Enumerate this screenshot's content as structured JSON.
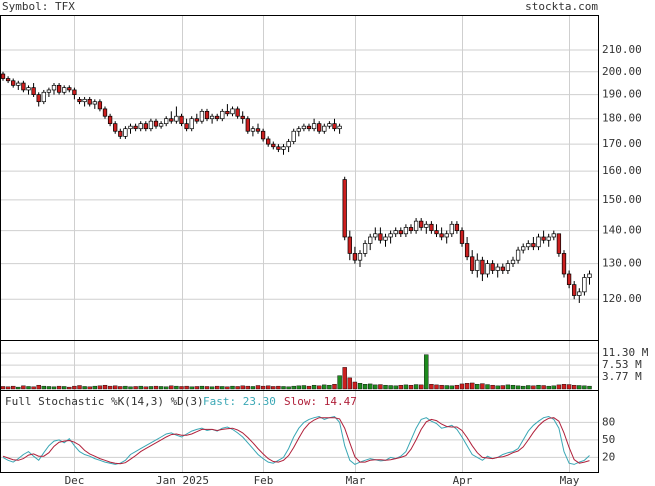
{
  "chart_data": [
    {
      "type": "candlestick",
      "title": "Symbol: TFX",
      "source": "stockta.com",
      "log_scale": true,
      "grid": true,
      "up_color": "#ffffff",
      "down_color": "#cc1f1f",
      "categories": [
        null,
        null,
        null,
        null,
        null,
        null,
        null,
        null,
        null,
        null,
        null,
        null,
        null,
        null,
        "Dec",
        null,
        null,
        null,
        null,
        null,
        null,
        null,
        null,
        null,
        null,
        null,
        null,
        null,
        null,
        null,
        null,
        null,
        null,
        null,
        null,
        "Jan 2025",
        null,
        null,
        null,
        null,
        null,
        null,
        null,
        null,
        null,
        null,
        null,
        null,
        null,
        null,
        null,
        "Feb",
        null,
        null,
        null,
        null,
        null,
        null,
        null,
        null,
        null,
        null,
        null,
        null,
        null,
        null,
        null,
        null,
        null,
        "Mar",
        null,
        null,
        null,
        null,
        null,
        null,
        null,
        null,
        null,
        null,
        null,
        null,
        null,
        null,
        null,
        null,
        null,
        null,
        null,
        null,
        "Apr",
        null,
        null,
        null,
        null,
        null,
        null,
        null,
        null,
        null,
        null,
        null,
        null,
        null,
        null,
        null,
        null,
        null,
        null,
        null,
        null,
        "May",
        null,
        null,
        null,
        null
      ],
      "open": [
        199,
        197,
        196,
        194,
        195,
        192,
        193,
        190,
        187,
        191,
        192,
        194,
        191,
        193,
        192,
        188,
        187,
        188,
        186,
        187,
        184,
        181,
        178,
        175,
        173,
        176,
        177,
        176,
        178,
        176,
        179,
        177,
        178,
        180,
        179,
        181,
        178,
        176,
        180,
        179,
        183,
        180,
        181,
        180,
        183,
        182,
        184,
        181,
        180,
        175,
        176,
        175,
        172,
        170,
        169,
        168,
        169,
        171,
        175,
        176,
        177,
        176,
        178,
        175,
        177,
        178,
        176,
        157,
        138,
        133,
        131,
        133,
        136,
        138,
        139,
        137,
        138,
        139,
        140,
        139,
        141,
        140,
        143,
        141,
        142,
        140,
        139,
        138,
        139,
        142,
        140,
        136,
        132,
        128,
        131,
        127,
        130,
        128,
        129,
        128,
        130,
        131,
        134,
        135,
        136,
        135,
        138,
        137,
        138,
        139,
        133,
        127,
        124,
        121,
        122,
        126
      ],
      "high": [
        200,
        198,
        197,
        196,
        196,
        194,
        195,
        191,
        192,
        193,
        195,
        195,
        194,
        194,
        193,
        189,
        189,
        189,
        188,
        188,
        185,
        182,
        179,
        176,
        177,
        178,
        178,
        179,
        179,
        180,
        180,
        179,
        181,
        183,
        185,
        182,
        180,
        181,
        182,
        184,
        184,
        182,
        182,
        184,
        186,
        185,
        185,
        183,
        181,
        177,
        178,
        176,
        173,
        171,
        170,
        170,
        172,
        176,
        177,
        178,
        178,
        180,
        179,
        178,
        179,
        180,
        178,
        158,
        140,
        135,
        134,
        137,
        139,
        141,
        141,
        139,
        140,
        141,
        141,
        142,
        142,
        144,
        144,
        143,
        143,
        142,
        141,
        140,
        143,
        143,
        141,
        138,
        134,
        133,
        132,
        131,
        131,
        130,
        130,
        131,
        132,
        135,
        136,
        137,
        138,
        139,
        140,
        139,
        140,
        139,
        134,
        128,
        125,
        123,
        127,
        128
      ],
      "low": [
        196,
        195,
        193,
        192,
        191,
        190,
        189,
        185,
        186,
        189,
        190,
        190,
        190,
        191,
        188,
        186,
        185,
        185,
        184,
        183,
        180,
        177,
        174,
        172,
        172,
        174,
        175,
        175,
        175,
        175,
        176,
        176,
        177,
        178,
        178,
        177,
        175,
        175,
        178,
        178,
        179,
        178,
        179,
        179,
        181,
        181,
        180,
        178,
        174,
        173,
        174,
        171,
        169,
        168,
        167,
        166,
        167,
        170,
        173,
        175,
        175,
        175,
        174,
        174,
        176,
        175,
        174,
        137,
        131,
        130,
        129,
        132,
        134,
        137,
        136,
        135,
        136,
        138,
        138,
        138,
        139,
        139,
        140,
        139,
        139,
        138,
        137,
        136,
        138,
        139,
        135,
        131,
        127,
        126,
        125,
        126,
        127,
        126,
        127,
        127,
        129,
        130,
        133,
        134,
        134,
        134,
        136,
        135,
        137,
        132,
        126,
        123,
        120,
        119,
        121,
        124
      ],
      "close": [
        197,
        196,
        194,
        195,
        192,
        193,
        190,
        187,
        191,
        192,
        194,
        191,
        193,
        192,
        190,
        187,
        188,
        186,
        187,
        184,
        181,
        178,
        175,
        173,
        176,
        177,
        176,
        178,
        176,
        179,
        177,
        178,
        180,
        179,
        181,
        178,
        176,
        180,
        179,
        183,
        180,
        181,
        180,
        183,
        182,
        184,
        181,
        180,
        175,
        176,
        175,
        172,
        170,
        169,
        168,
        169,
        171,
        175,
        176,
        177,
        176,
        178,
        175,
        177,
        178,
        176,
        177,
        138,
        133,
        131,
        133,
        136,
        138,
        139,
        137,
        138,
        139,
        140,
        139,
        141,
        140,
        143,
        141,
        142,
        140,
        139,
        138,
        139,
        142,
        140,
        136,
        132,
        128,
        131,
        127,
        130,
        128,
        129,
        128,
        130,
        131,
        134,
        135,
        136,
        135,
        138,
        137,
        138,
        139,
        133,
        127,
        124,
        121,
        122,
        126,
        127
      ],
      "ylim": [
        109.5,
        227.2
      ],
      "yticks": [
        {
          "value": 210,
          "label": "210.00"
        },
        {
          "value": 200,
          "label": "200.00"
        },
        {
          "value": 190,
          "label": "190.00"
        },
        {
          "value": 180,
          "label": "180.00"
        },
        {
          "value": 170,
          "label": "170.00"
        },
        {
          "value": 160,
          "label": "160.00"
        },
        {
          "value": 150,
          "label": "150.00"
        },
        {
          "value": 140,
          "label": "140.00"
        },
        {
          "value": 130,
          "label": "130.00"
        },
        {
          "value": 120,
          "label": "120.00"
        }
      ]
    },
    {
      "type": "bar",
      "up_color": "#1e8a1e",
      "down_color": "#cc1f1f",
      "values": [
        0.8,
        0.7,
        0.9,
        0.6,
        1.0,
        0.8,
        0.7,
        1.2,
        0.9,
        0.8,
        0.7,
        0.9,
        0.8,
        0.6,
        0.9,
        1.1,
        0.8,
        0.7,
        0.9,
        1.0,
        1.2,
        0.9,
        1.0,
        0.8,
        0.9,
        0.7,
        0.8,
        0.9,
        0.7,
        0.8,
        0.9,
        0.8,
        0.7,
        1.0,
        0.9,
        0.8,
        0.9,
        0.7,
        0.8,
        0.9,
        0.8,
        0.7,
        0.9,
        0.8,
        0.7,
        0.9,
        0.8,
        1.0,
        0.9,
        0.8,
        1.1,
        0.9,
        1.0,
        0.8,
        0.9,
        0.8,
        0.7,
        0.9,
        1.0,
        1.1,
        0.9,
        1.2,
        1.0,
        1.3,
        1.2,
        1.5,
        4.2,
        6.8,
        3.5,
        2.2,
        1.8,
        1.5,
        1.6,
        1.3,
        1.4,
        1.2,
        1.1,
        1.0,
        1.2,
        1.3,
        1.2,
        1.4,
        1.3,
        10.8,
        1.5,
        1.3,
        1.2,
        1.1,
        1.0,
        1.2,
        1.6,
        1.8,
        1.9,
        1.5,
        1.7,
        1.4,
        1.2,
        1.0,
        1.1,
        1.3,
        1.2,
        1.0,
        0.9,
        1.1,
        1.0,
        1.2,
        1.1,
        0.9,
        1.0,
        1.3,
        1.5,
        1.4,
        1.2,
        1.1,
        1.0,
        0.9
      ],
      "ylim": [
        0,
        15.1
      ],
      "yticks": [
        {
          "value": 11.3,
          "label": "11.30 M"
        },
        {
          "value": 7.53,
          "label": "7.53 M"
        },
        {
          "value": 3.77,
          "label": "3.77 M"
        }
      ]
    },
    {
      "type": "line",
      "title": "Full Stochastic %K(14,3) %D(3)",
      "series": [
        {
          "name": "Fast: 23.30",
          "color": "#3aa7b5",
          "values": [
            20,
            15,
            12,
            18,
            25,
            30,
            22,
            15,
            28,
            40,
            48,
            50,
            45,
            52,
            40,
            30,
            25,
            22,
            18,
            15,
            12,
            10,
            8,
            10,
            15,
            25,
            30,
            35,
            40,
            45,
            50,
            55,
            60,
            62,
            58,
            55,
            60,
            65,
            68,
            70,
            66,
            68,
            65,
            70,
            72,
            68,
            62,
            55,
            45,
            35,
            25,
            18,
            12,
            10,
            15,
            20,
            35,
            55,
            70,
            80,
            85,
            88,
            90,
            85,
            88,
            90,
            80,
            40,
            15,
            8,
            12,
            15,
            18,
            16,
            14,
            15,
            20,
            18,
            22,
            30,
            50,
            70,
            85,
            88,
            82,
            78,
            70,
            72,
            75,
            68,
            55,
            40,
            25,
            20,
            15,
            22,
            18,
            20,
            25,
            28,
            30,
            35,
            50,
            65,
            75,
            82,
            88,
            90,
            85,
            70,
            30,
            10,
            8,
            12,
            15,
            23.3
          ]
        },
        {
          "name": "Slow: 14.47",
          "color": "#b0203a",
          "values": [
            22,
            19,
            16,
            15,
            18,
            24,
            26,
            22,
            22,
            28,
            39,
            46,
            48,
            49,
            46,
            41,
            32,
            26,
            22,
            18,
            15,
            12,
            10,
            9,
            11,
            17,
            23,
            30,
            35,
            40,
            45,
            50,
            55,
            59,
            60,
            58,
            58,
            60,
            64,
            68,
            68,
            68,
            66,
            68,
            69,
            70,
            67,
            62,
            54,
            45,
            35,
            26,
            18,
            13,
            12,
            15,
            23,
            37,
            53,
            68,
            78,
            84,
            88,
            88,
            88,
            88,
            86,
            70,
            45,
            21,
            12,
            12,
            15,
            16,
            16,
            15,
            16,
            18,
            20,
            23,
            34,
            50,
            68,
            81,
            85,
            83,
            77,
            73,
            72,
            72,
            66,
            54,
            40,
            28,
            20,
            19,
            18,
            20,
            21,
            24,
            28,
            31,
            38,
            50,
            63,
            74,
            82,
            87,
            88,
            82,
            62,
            37,
            16,
            10,
            12,
            14.47
          ]
        }
      ],
      "ylim": [
        -5,
        132
      ],
      "yticks": [
        80,
        50,
        20
      ]
    }
  ]
}
